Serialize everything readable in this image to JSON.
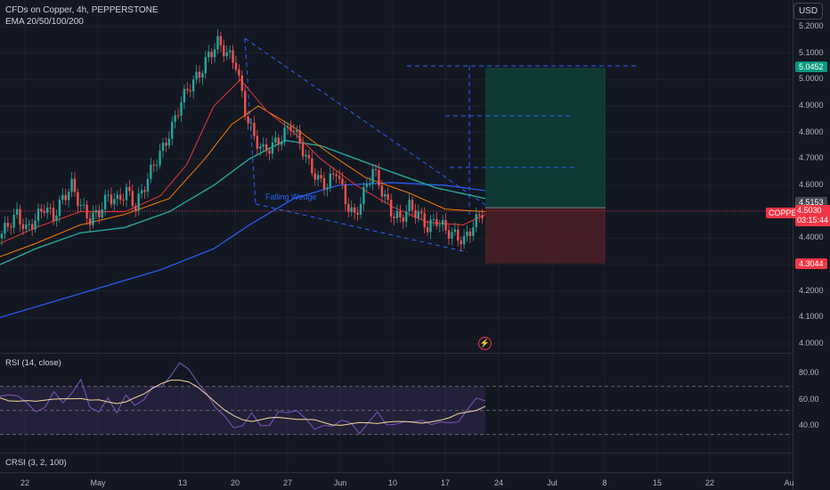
{
  "header": {
    "title": "CFDs on Copper, 4h, PEPPERSTONE",
    "indicators": "EMA 20/50/100/200",
    "currency_button": "USD"
  },
  "price_axis": [
    "5.2000",
    "5.1000",
    "5.0000",
    "4.9000",
    "4.8000",
    "4.7000",
    "4.6000",
    "4.4000",
    "4.3000",
    "4.2000",
    "4.1000",
    "4.0000"
  ],
  "price_labels": {
    "target": "5.0452",
    "entry": "4.5153",
    "stop": "4.3044",
    "symbol": "COPPER",
    "current": "4.5030",
    "countdown": "03:15:44"
  },
  "pattern_label": "Falling Wedge",
  "rsi": {
    "label": "RSI (14, close)",
    "axis": [
      "80.00",
      "60.00",
      "40.00"
    ]
  },
  "crsi": {
    "label": "CRSI (3, 2, 100)"
  },
  "time_axis": [
    "22",
    "May",
    "13",
    "20",
    "27",
    "Jun",
    "10",
    "17",
    "24",
    "Jul",
    "8",
    "15",
    "22",
    "Au"
  ],
  "colors": {
    "background": "#131722",
    "up": "#26a69a",
    "down": "#ef5350",
    "ema20": "#e53935",
    "ema50": "#f57c00",
    "ema100": "#26a69a",
    "ema200": "#2962ff",
    "rsi": "#7e57c2",
    "rsi_ma": "#f3d99a",
    "profit": "#0f3d36",
    "loss": "#4a1f27"
  },
  "chart_data": {
    "type": "candlestick",
    "title": "CFDs on Copper, 4h, PEPPERSTONE",
    "ylim": [
      3.98,
      5.25
    ],
    "x_labels": [
      "22",
      "May",
      "13",
      "20",
      "27",
      "Jun",
      "10",
      "17",
      "24",
      "Jul",
      "8",
      "15",
      "22",
      "Au"
    ],
    "close_path": [
      4.4,
      4.45,
      4.49,
      4.43,
      4.47,
      4.52,
      4.48,
      4.55,
      4.6,
      4.52,
      4.47,
      4.5,
      4.56,
      4.54,
      4.58,
      4.52,
      4.6,
      4.68,
      4.74,
      4.82,
      4.92,
      4.98,
      5.02,
      5.09,
      5.14,
      5.1,
      5.06,
      4.88,
      4.78,
      4.73,
      4.75,
      4.78,
      4.83,
      4.76,
      4.68,
      4.62,
      4.6,
      4.66,
      4.54,
      4.48,
      4.57,
      4.66,
      4.58,
      4.5,
      4.47,
      4.52,
      4.49,
      4.44,
      4.47,
      4.43,
      4.41,
      4.39,
      4.45,
      4.5
    ],
    "ema20_end": 4.49,
    "ema50_end": 4.5,
    "ema100_end": 4.55,
    "ema200_end": 4.6,
    "position": {
      "target": 5.0452,
      "entry": 4.5153,
      "stop": 4.3044,
      "current": 4.503
    },
    "rsi_ylim": [
      20,
      95
    ],
    "rsi_bands": [
      70,
      50,
      30
    ],
    "rsi_values": [
      62,
      60,
      66,
      54,
      48,
      56,
      62,
      58,
      66,
      72,
      56,
      48,
      58,
      52,
      60,
      54,
      62,
      66,
      72,
      80,
      86,
      88,
      72,
      62,
      56,
      42,
      36,
      40,
      44,
      40,
      38,
      46,
      52,
      48,
      42,
      38,
      34,
      38,
      44,
      36,
      34,
      40,
      46,
      42,
      36,
      40,
      44,
      38,
      40,
      42,
      36,
      44,
      50,
      58,
      62
    ]
  }
}
